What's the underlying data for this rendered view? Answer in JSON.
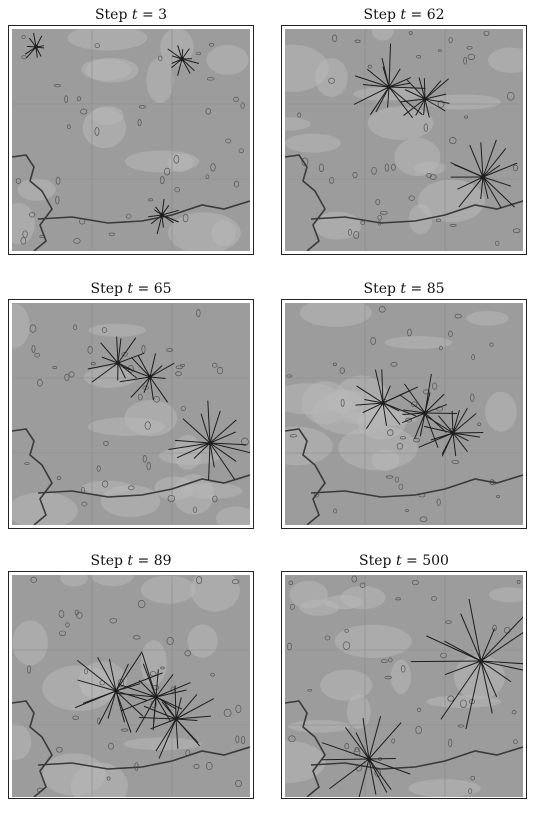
{
  "panels": [
    {
      "caption_prefix": "Step ",
      "caption_var": "t",
      "caption_eq": " = ",
      "caption_value": "3"
    },
    {
      "caption_prefix": "Step ",
      "caption_var": "t",
      "caption_eq": " = ",
      "caption_value": "62"
    },
    {
      "caption_prefix": "Step ",
      "caption_var": "t",
      "caption_eq": " = ",
      "caption_value": "65"
    },
    {
      "caption_prefix": "Step ",
      "caption_var": "t",
      "caption_eq": " = ",
      "caption_value": "85"
    },
    {
      "caption_prefix": "Step ",
      "caption_var": "t",
      "caption_eq": " = ",
      "caption_value": "89"
    },
    {
      "caption_prefix": "Step ",
      "caption_var": "t",
      "caption_eq": " = ",
      "caption_value": "500"
    }
  ],
  "colors": {
    "map_background": "#9c9c9c",
    "map_light": "#b8b8b8",
    "river": "#3a3a3a",
    "star_lines": "#1e1e1e",
    "frame": "#222222"
  }
}
